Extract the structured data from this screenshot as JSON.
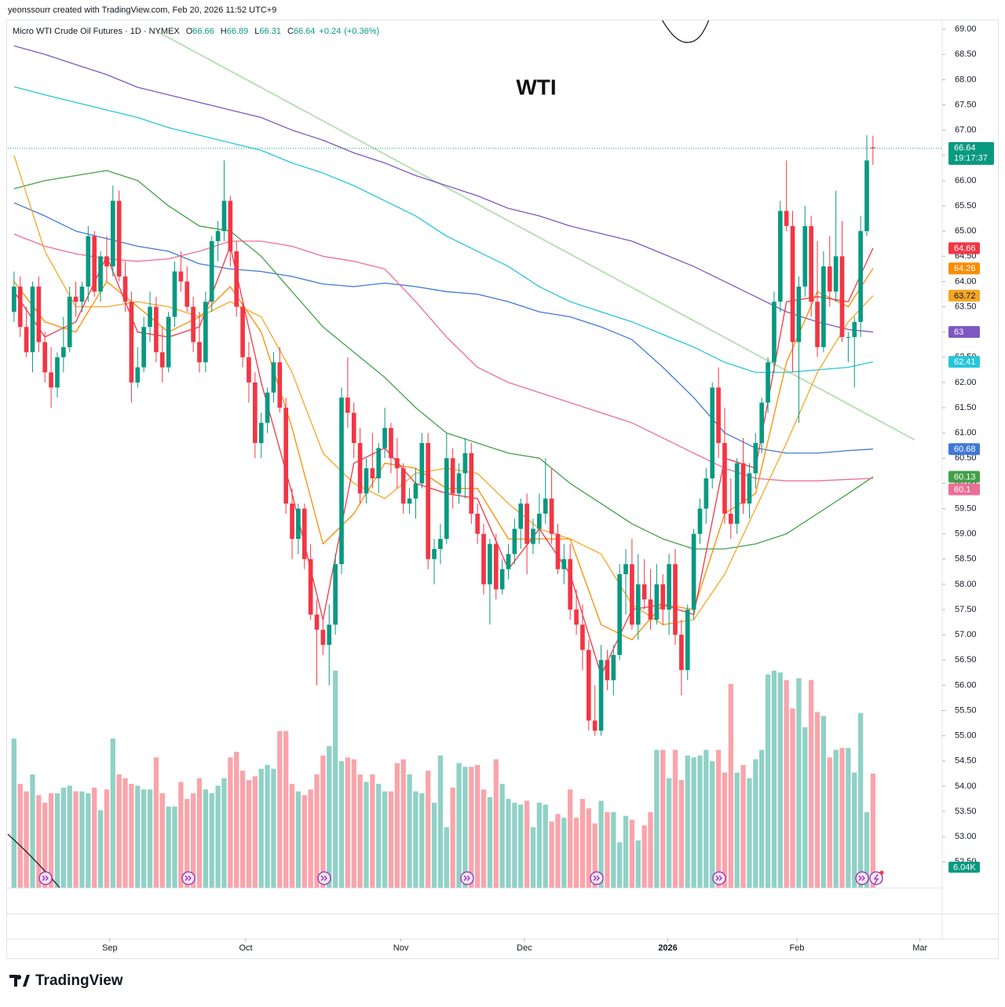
{
  "attribution": "yeonssourr created with TradingView.com, Feb 20, 2026 11:52 UTC+9",
  "footer_brand": "TradingView",
  "chart_data": {
    "type": "candlestick",
    "title": "WTI",
    "symbol": "Micro WTI Crude Oil Futures · 1D · NYMEX",
    "ohlc_keys": [
      "O",
      "H",
      "L",
      "C"
    ],
    "change": {
      "value": 0.24,
      "label": "+0.24"
    },
    "change_percent": {
      "value": 0.36,
      "label": "(+0.36%)"
    },
    "countdown": "19:17:37",
    "up_color": "#089981",
    "down_color": "#f23645",
    "xlim": [
      -1,
      150.2
    ],
    "ylim": [
      51.99,
      69.19
    ],
    "volume_ylim": [
      0,
      46
    ],
    "grid": false,
    "xticks": [
      {
        "value": 15.5,
        "label": "Sep"
      },
      {
        "value": 37.5,
        "label": "Oct"
      },
      {
        "value": 62.6,
        "label": "Nov"
      },
      {
        "value": 82.6,
        "label": "Dec"
      },
      {
        "value": 105.8,
        "label": "2026"
      },
      {
        "value": 126.7,
        "label": "Feb"
      },
      {
        "value": 146.6,
        "label": "Mar"
      }
    ],
    "yticks": [
      {
        "value": 69,
        "label": "69.00"
      },
      {
        "value": 68.5,
        "label": "68.50"
      },
      {
        "value": 68,
        "label": "68.00"
      },
      {
        "value": 67.5,
        "label": "67.50"
      },
      {
        "value": 67,
        "label": "67.00"
      },
      {
        "value": 66.5,
        "label": "66.50"
      },
      {
        "value": 66,
        "label": "66.00"
      },
      {
        "value": 65.5,
        "label": "65.50"
      },
      {
        "value": 65,
        "label": "65.00"
      },
      {
        "value": 64.5,
        "label": "64.50"
      },
      {
        "value": 64,
        "label": "64.00"
      },
      {
        "value": 63.5,
        "label": "63.50"
      },
      {
        "value": 63,
        "label": "63.00"
      },
      {
        "value": 62.5,
        "label": "62.50"
      },
      {
        "value": 62,
        "label": "62.00"
      },
      {
        "value": 61.5,
        "label": "61.50"
      },
      {
        "value": 61,
        "label": "61.00"
      },
      {
        "value": 60.5,
        "label": "60.50"
      },
      {
        "value": 60,
        "label": "60.00"
      },
      {
        "value": 59.5,
        "label": "59.50"
      },
      {
        "value": 59,
        "label": "59.00"
      },
      {
        "value": 58.5,
        "label": "58.50"
      },
      {
        "value": 58,
        "label": "58.00"
      },
      {
        "value": 57.5,
        "label": "57.50"
      },
      {
        "value": 57,
        "label": "57.00"
      },
      {
        "value": 56.5,
        "label": "56.50"
      },
      {
        "value": 56,
        "label": "56.00"
      },
      {
        "value": 55.5,
        "label": "55.50"
      },
      {
        "value": 55,
        "label": "55.00"
      },
      {
        "value": 54.5,
        "label": "54.50"
      },
      {
        "value": 54,
        "label": "54.00"
      },
      {
        "value": 53.5,
        "label": "53.50"
      },
      {
        "value": 53,
        "label": "53.00"
      },
      {
        "value": 52.5,
        "label": "52.50"
      }
    ],
    "candles": [
      [
        63.4,
        64.2,
        63.2,
        63.9
      ],
      [
        63.9,
        64.1,
        62.9,
        63.1
      ],
      [
        63.1,
        63.5,
        62.5,
        62.6
      ],
      [
        62.6,
        64.0,
        62.2,
        63.9
      ],
      [
        63.9,
        64.1,
        62.6,
        62.8
      ],
      [
        62.8,
        63.0,
        62.0,
        62.2
      ],
      [
        62.2,
        62.7,
        61.5,
        61.9
      ],
      [
        61.9,
        62.6,
        61.7,
        62.5
      ],
      [
        62.5,
        63.3,
        62.2,
        62.7
      ],
      [
        62.7,
        63.9,
        62.6,
        63.7
      ],
      [
        63.7,
        64.0,
        63.3,
        63.6
      ],
      [
        63.6,
        64.0,
        63.4,
        63.9
      ],
      [
        63.9,
        65.1,
        63.6,
        64.9
      ],
      [
        64.9,
        65.0,
        63.7,
        63.8
      ],
      [
        63.8,
        64.6,
        63.6,
        64.5
      ],
      [
        64.5,
        64.9,
        64.0,
        64.3
      ],
      [
        64.3,
        65.9,
        64.1,
        65.6
      ],
      [
        65.6,
        65.8,
        64.0,
        64.1
      ],
      [
        64.1,
        64.4,
        63.4,
        63.6
      ],
      [
        63.6,
        63.8,
        61.6,
        62.0
      ],
      [
        62.0,
        62.7,
        61.9,
        62.3
      ],
      [
        62.3,
        63.3,
        62.2,
        63.1
      ],
      [
        63.1,
        63.8,
        62.8,
        63.5
      ],
      [
        63.5,
        63.7,
        62.4,
        62.6
      ],
      [
        62.6,
        63.1,
        62.0,
        62.3
      ],
      [
        62.3,
        63.4,
        62.2,
        63.3
      ],
      [
        63.3,
        64.4,
        63.1,
        64.2
      ],
      [
        64.2,
        64.6,
        63.8,
        64.0
      ],
      [
        64.0,
        64.3,
        63.4,
        63.5
      ],
      [
        63.5,
        63.7,
        62.6,
        62.8
      ],
      [
        62.8,
        63.4,
        62.2,
        62.4
      ],
      [
        62.4,
        63.8,
        62.2,
        63.6
      ],
      [
        63.6,
        64.9,
        63.4,
        64.8
      ],
      [
        64.8,
        65.2,
        64.4,
        65.0
      ],
      [
        65.0,
        66.4,
        64.8,
        65.6
      ],
      [
        65.6,
        65.7,
        64.3,
        64.6
      ],
      [
        64.6,
        64.8,
        63.3,
        63.5
      ],
      [
        63.5,
        63.6,
        62.3,
        62.5
      ],
      [
        62.5,
        62.8,
        61.6,
        62.0
      ],
      [
        62.0,
        62.2,
        60.5,
        60.8
      ],
      [
        60.8,
        61.4,
        60.5,
        61.2
      ],
      [
        61.2,
        61.9,
        61.0,
        61.8
      ],
      [
        61.8,
        62.6,
        61.6,
        62.4
      ],
      [
        62.4,
        62.7,
        61.4,
        61.5
      ],
      [
        61.5,
        61.7,
        59.4,
        59.6
      ],
      [
        59.6,
        59.9,
        58.5,
        58.9
      ],
      [
        58.9,
        59.6,
        58.6,
        59.5
      ],
      [
        59.5,
        59.6,
        58.3,
        58.5
      ],
      [
        58.5,
        58.8,
        57.3,
        57.4
      ],
      [
        57.4,
        57.7,
        56.0,
        57.1
      ],
      [
        57.1,
        57.3,
        56.6,
        56.8
      ],
      [
        56.8,
        57.6,
        56.0,
        57.2
      ],
      [
        57.2,
        58.6,
        57.0,
        58.4
      ],
      [
        58.4,
        61.9,
        58.2,
        61.7
      ],
      [
        61.7,
        62.5,
        61.1,
        61.4
      ],
      [
        61.4,
        61.6,
        60.5,
        60.8
      ],
      [
        60.8,
        61.1,
        59.6,
        59.8
      ],
      [
        59.8,
        60.5,
        59.6,
        60.3
      ],
      [
        60.3,
        61.0,
        59.9,
        60.1
      ],
      [
        60.1,
        60.8,
        59.8,
        60.7
      ],
      [
        60.7,
        61.5,
        60.5,
        61.1
      ],
      [
        61.1,
        61.2,
        60.2,
        60.5
      ],
      [
        60.5,
        60.9,
        59.9,
        60.3
      ],
      [
        60.3,
        60.4,
        59.4,
        59.6
      ],
      [
        59.6,
        59.9,
        59.4,
        59.7
      ],
      [
        59.7,
        60.3,
        59.3,
        60.0
      ],
      [
        60.0,
        61.0,
        59.9,
        60.8
      ],
      [
        60.8,
        61.0,
        58.3,
        58.5
      ],
      [
        58.5,
        58.9,
        58.0,
        58.7
      ],
      [
        58.7,
        59.2,
        58.4,
        58.9
      ],
      [
        58.9,
        61.0,
        58.8,
        60.5
      ],
      [
        60.5,
        60.7,
        59.5,
        59.8
      ],
      [
        59.8,
        60.4,
        59.6,
        60.2
      ],
      [
        60.2,
        60.9,
        59.7,
        60.6
      ],
      [
        60.6,
        60.8,
        59.2,
        59.4
      ],
      [
        59.4,
        59.6,
        58.8,
        59.0
      ],
      [
        59.0,
        59.2,
        57.8,
        58.0
      ],
      [
        58.0,
        58.9,
        57.2,
        58.8
      ],
      [
        58.8,
        59.0,
        57.7,
        57.9
      ],
      [
        57.9,
        58.5,
        57.8,
        58.3
      ],
      [
        58.3,
        58.8,
        58.1,
        58.6
      ],
      [
        58.6,
        59.3,
        58.4,
        59.1
      ],
      [
        59.1,
        59.7,
        58.7,
        59.6
      ],
      [
        59.6,
        59.8,
        58.2,
        58.8
      ],
      [
        58.8,
        59.3,
        58.6,
        59.1
      ],
      [
        59.1,
        59.8,
        58.8,
        59.4
      ],
      [
        59.4,
        60.5,
        59.2,
        59.7
      ],
      [
        59.7,
        60.3,
        58.8,
        59.0
      ],
      [
        59.0,
        59.2,
        58.2,
        58.3
      ],
      [
        58.3,
        58.8,
        58.0,
        58.5
      ],
      [
        58.5,
        58.8,
        57.3,
        57.5
      ],
      [
        57.5,
        57.9,
        57.0,
        57.2
      ],
      [
        57.2,
        57.6,
        56.3,
        56.7
      ],
      [
        56.7,
        56.9,
        55.1,
        55.3
      ],
      [
        55.3,
        56.0,
        55.0,
        55.1
      ],
      [
        55.1,
        56.8,
        55.0,
        56.5
      ],
      [
        56.5,
        56.7,
        55.9,
        56.1
      ],
      [
        56.1,
        56.8,
        55.8,
        56.6
      ],
      [
        56.6,
        58.4,
        56.5,
        58.2
      ],
      [
        58.2,
        58.7,
        57.4,
        58.4
      ],
      [
        58.4,
        58.9,
        57.1,
        57.2
      ],
      [
        57.2,
        58.6,
        56.9,
        58.0
      ],
      [
        58.0,
        58.5,
        57.5,
        57.7
      ],
      [
        57.7,
        58.3,
        57.1,
        57.3
      ],
      [
        57.3,
        58.4,
        57.2,
        58.0
      ],
      [
        58.0,
        58.2,
        57.2,
        57.5
      ],
      [
        57.5,
        58.6,
        57.0,
        58.4
      ],
      [
        58.4,
        58.7,
        56.8,
        57.0
      ],
      [
        57.0,
        57.3,
        55.8,
        56.3
      ],
      [
        56.3,
        57.6,
        56.1,
        57.5
      ],
      [
        57.5,
        59.1,
        57.3,
        59.0
      ],
      [
        59.0,
        59.7,
        58.8,
        59.5
      ],
      [
        59.5,
        60.3,
        59.2,
        60.1
      ],
      [
        60.1,
        62.0,
        59.9,
        61.9
      ],
      [
        61.9,
        62.3,
        60.5,
        60.8
      ],
      [
        60.8,
        61.5,
        59.2,
        59.4
      ],
      [
        59.4,
        60.1,
        58.9,
        59.2
      ],
      [
        59.2,
        60.5,
        59.0,
        60.4
      ],
      [
        60.4,
        60.9,
        59.4,
        59.6
      ],
      [
        59.6,
        60.4,
        59.3,
        60.2
      ],
      [
        60.2,
        61.0,
        59.9,
        60.8
      ],
      [
        60.8,
        61.7,
        60.6,
        61.6
      ],
      [
        61.6,
        62.5,
        61.4,
        62.4
      ],
      [
        62.4,
        63.8,
        62.2,
        63.6
      ],
      [
        63.6,
        65.6,
        63.4,
        65.4
      ],
      [
        65.4,
        66.4,
        65.0,
        65.1
      ],
      [
        65.1,
        65.4,
        62.2,
        62.8
      ],
      [
        62.8,
        64.1,
        61.2,
        63.9
      ],
      [
        63.9,
        65.5,
        63.7,
        65.1
      ],
      [
        65.1,
        65.3,
        63.3,
        63.6
      ],
      [
        63.6,
        64.8,
        62.5,
        62.7
      ],
      [
        62.7,
        64.6,
        62.6,
        64.3
      ],
      [
        64.3,
        64.9,
        63.5,
        63.8
      ],
      [
        63.8,
        65.8,
        63.6,
        64.5
      ],
      [
        64.5,
        65.2,
        62.8,
        62.9
      ],
      [
        62.9,
        63.0,
        62.4,
        62.9
      ],
      [
        62.9,
        63.3,
        61.9,
        63.2
      ],
      [
        63.2,
        65.3,
        62.9,
        65.0
      ],
      [
        65.0,
        66.9,
        64.9,
        66.4
      ],
      [
        66.66,
        66.89,
        66.31,
        66.64
      ]
    ],
    "volumes": [
      7.9,
      5.5,
      5.1,
      6.0,
      4.9,
      4.5,
      5.0,
      5.0,
      5.3,
      5.4,
      5.1,
      5.1,
      5.0,
      5.3,
      4.1,
      5.2,
      7.9,
      6.0,
      5.8,
      5.5,
      5.4,
      5.2,
      5.2,
      6.9,
      5.0,
      4.3,
      4.3,
      5.6,
      4.7,
      5.0,
      5.8,
      5.2,
      5.0,
      5.4,
      5.8,
      6.9,
      7.2,
      6.2,
      5.7,
      5.9,
      6.3,
      6.5,
      6.3,
      8.3,
      8.3,
      5.5,
      5.1,
      4.9,
      5.2,
      6.0,
      7.0,
      7.5,
      11.5,
      6.7,
      6.9,
      6.8,
      6.0,
      5.6,
      6.0,
      5.5,
      5.1,
      5.1,
      6.6,
      6.8,
      6.0,
      5.1,
      5.0,
      6.2,
      4.5,
      7.0,
      3.2,
      5.3,
      6.6,
      6.4,
      6.4,
      6.5,
      5.2,
      4.8,
      6.8,
      5.5,
      4.7,
      4.5,
      4.4,
      4.6,
      3.2,
      4.5,
      4.4,
      3.5,
      3.9,
      3.7,
      5.2,
      3.7,
      4.7,
      4.2,
      3.4,
      4.6,
      4.0,
      4.0,
      2.4,
      3.8,
      3.6,
      2.5,
      3.3,
      4.0,
      7.3,
      7.3,
      5.8,
      7.3,
      5.7,
      7.0,
      6.9,
      7.0,
      7.3,
      6.7,
      7.3,
      6.1,
      10.8,
      6.1,
      6.5,
      5.8,
      6.8,
      7.3,
      11.3,
      11.5,
      11.4,
      11.0,
      9.5,
      11.1,
      8.5,
      11.0,
      9.3,
      9.1,
      6.9,
      7.3,
      7.4,
      7.4,
      6.1,
      9.25,
      4.0,
      6.04
    ],
    "volume_flag": {
      "value": 6.04,
      "label": "6.04K"
    },
    "ma_x": [
      0,
      5,
      10,
      15,
      20,
      25,
      30,
      35,
      40,
      45,
      50,
      55,
      60,
      65,
      70,
      75,
      80,
      85,
      90,
      95,
      100,
      105,
      110,
      115,
      120,
      125,
      130,
      135,
      139
    ],
    "series": [
      {
        "color": "#7e57c2",
        "values": [
          68.67,
          68.5,
          68.3,
          68.1,
          67.85,
          67.7,
          67.55,
          67.4,
          67.25,
          67.0,
          66.8,
          66.55,
          66.35,
          66.1,
          65.9,
          65.7,
          65.45,
          65.3,
          65.1,
          64.95,
          64.8,
          64.55,
          64.3,
          64.0,
          63.7,
          63.4,
          63.2,
          63.05,
          63.0
        ]
      },
      {
        "color": "#26c6da",
        "values": [
          67.86,
          67.7,
          67.55,
          67.4,
          67.25,
          67.05,
          66.9,
          66.75,
          66.6,
          66.35,
          66.15,
          65.9,
          65.6,
          65.3,
          64.9,
          64.6,
          64.3,
          63.9,
          63.6,
          63.4,
          63.2,
          62.95,
          62.7,
          62.4,
          62.2,
          62.2,
          62.25,
          62.3,
          62.41
        ]
      },
      {
        "color": "#3f78d8",
        "values": [
          65.56,
          65.3,
          65.0,
          64.85,
          64.7,
          64.6,
          64.35,
          64.25,
          64.2,
          64.1,
          63.95,
          63.9,
          63.97,
          63.9,
          63.8,
          63.75,
          63.6,
          63.4,
          63.3,
          63.1,
          62.85,
          62.3,
          61.7,
          61.0,
          60.7,
          60.6,
          60.6,
          60.65,
          60.68
        ]
      },
      {
        "color": "#43a047",
        "values": [
          65.84,
          66.0,
          66.1,
          66.2,
          66.0,
          65.5,
          65.1,
          65.0,
          64.5,
          63.8,
          63.1,
          62.6,
          62.1,
          61.5,
          61.0,
          60.8,
          60.6,
          60.5,
          60.0,
          59.6,
          59.2,
          58.9,
          58.7,
          58.7,
          58.8,
          59.0,
          59.4,
          59.8,
          60.13
        ]
      },
      {
        "color": "#ec6f95",
        "values": [
          64.94,
          64.7,
          64.55,
          64.45,
          64.4,
          64.45,
          64.6,
          64.8,
          64.8,
          64.7,
          64.5,
          64.4,
          64.25,
          63.6,
          62.9,
          62.3,
          62.0,
          61.8,
          61.6,
          61.4,
          61.2,
          60.9,
          60.6,
          60.3,
          60.1,
          60.05,
          60.05,
          60.08,
          60.1
        ]
      },
      {
        "color": "#f5a623",
        "values": [
          66.5,
          64.6,
          63.5,
          63.5,
          63.6,
          63.5,
          63.3,
          63.6,
          63.3,
          62.2,
          60.6,
          60.0,
          59.7,
          60.2,
          60.3,
          60.2,
          59.6,
          59.1,
          58.9,
          58.6,
          57.6,
          57.2,
          57.3,
          58.2,
          59.5,
          60.8,
          62.2,
          63.2,
          63.72
        ]
      },
      {
        "color": "#fb8c00",
        "values": [
          64.0,
          63.2,
          63.0,
          64.0,
          63.5,
          63.0,
          63.3,
          63.9,
          63.0,
          61.1,
          58.8,
          59.4,
          60.4,
          60.3,
          59.9,
          59.9,
          58.9,
          58.9,
          58.9,
          57.2,
          56.9,
          57.6,
          57.5,
          59.4,
          59.8,
          62.4,
          63.8,
          63.5,
          64.26
        ]
      },
      {
        "color": "#f23645",
        "values": [
          63.8,
          62.9,
          63.2,
          64.5,
          63.0,
          62.9,
          63.1,
          64.7,
          62.0,
          59.8,
          57.3,
          60.4,
          60.7,
          60.0,
          59.8,
          59.7,
          58.3,
          59.1,
          58.2,
          56.2,
          57.5,
          57.6,
          57.4,
          60.5,
          60.3,
          63.6,
          63.7,
          63.6,
          64.66
        ]
      }
    ]
  }
}
